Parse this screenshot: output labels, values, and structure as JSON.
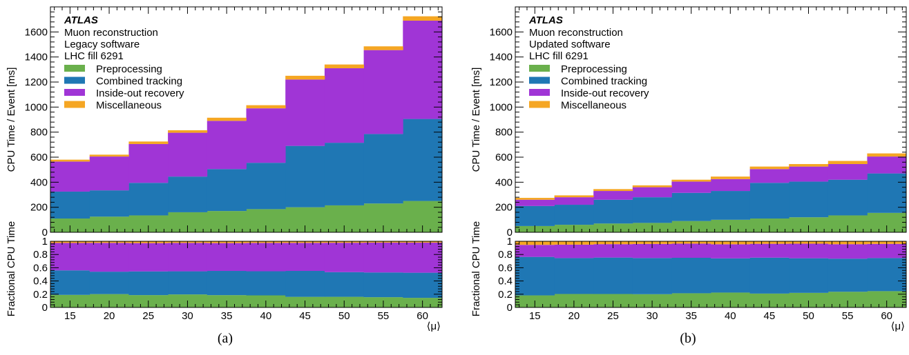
{
  "figure": {
    "colors": {
      "Preprocessing": "#6ab04c",
      "Combined tracking": "#1f77b4",
      "Inside-out recovery": "#a035d6",
      "Miscellaneous": "#f5a623"
    }
  },
  "chart_data": [
    {
      "type": "area",
      "panel_caption": "(a)",
      "experiment": "ATLAS",
      "info_lines": [
        "Muon reconstruction",
        "Legacy software",
        "LHC fill 6291"
      ],
      "xlabel": "⟨μ⟩",
      "ylabel": "CPU Time / Event [ms]",
      "ratio_ylabel": "Fractional CPU Time",
      "xlim": [
        12.5,
        62.5
      ],
      "ylim": [
        0,
        1800
      ],
      "ratio_ylim": [
        0,
        1
      ],
      "x_ticks": [
        15,
        20,
        25,
        30,
        35,
        40,
        45,
        50,
        55,
        60
      ],
      "y_ticks": [
        0,
        200,
        400,
        600,
        800,
        1000,
        1200,
        1400,
        1600
      ],
      "ratio_y_ticks": [
        "0",
        "0.2",
        "0.4",
        "0.6",
        "0.8",
        "1"
      ],
      "legend_position": "top-left",
      "bin_edges": [
        12.5,
        17.5,
        22.5,
        27.5,
        32.5,
        37.5,
        42.5,
        47.5,
        52.5,
        57.5,
        62.5
      ],
      "series": [
        {
          "name": "Preprocessing",
          "values": [
            110,
            125,
            135,
            160,
            170,
            185,
            200,
            215,
            230,
            250
          ]
        },
        {
          "name": "Combined tracking",
          "values": [
            215,
            210,
            260,
            285,
            335,
            370,
            490,
            500,
            555,
            655
          ]
        },
        {
          "name": "Inside-out recovery",
          "values": [
            240,
            270,
            310,
            350,
            385,
            435,
            530,
            595,
            670,
            785
          ]
        },
        {
          "name": "Miscellaneous",
          "values": [
            15,
            15,
            20,
            20,
            25,
            25,
            30,
            30,
            30,
            35
          ]
        }
      ]
    },
    {
      "type": "area",
      "panel_caption": "(b)",
      "experiment": "ATLAS",
      "info_lines": [
        "Muon reconstruction",
        "Updated software",
        "LHC fill 6291"
      ],
      "xlabel": "⟨μ⟩",
      "ylabel": "CPU Time / Event [ms]",
      "ratio_ylabel": "Fractional CPU Time",
      "xlim": [
        12.5,
        62.5
      ],
      "ylim": [
        0,
        1800
      ],
      "ratio_ylim": [
        0,
        1
      ],
      "x_ticks": [
        15,
        20,
        25,
        30,
        35,
        40,
        45,
        50,
        55,
        60
      ],
      "y_ticks": [
        0,
        200,
        400,
        600,
        800,
        1000,
        1200,
        1400,
        1600
      ],
      "ratio_y_ticks": [
        "0",
        "0.2",
        "0.4",
        "0.6",
        "0.8",
        "1"
      ],
      "legend_position": "top-left",
      "bin_edges": [
        12.5,
        17.5,
        22.5,
        27.5,
        32.5,
        37.5,
        42.5,
        47.5,
        52.5,
        57.5,
        62.5
      ],
      "series": [
        {
          "name": "Preprocessing",
          "values": [
            50,
            60,
            70,
            75,
            90,
            100,
            110,
            120,
            135,
            155
          ]
        },
        {
          "name": "Combined tracking",
          "values": [
            160,
            160,
            190,
            205,
            225,
            230,
            285,
            285,
            285,
            315
          ]
        },
        {
          "name": "Inside-out recovery",
          "values": [
            50,
            60,
            70,
            80,
            90,
            95,
            110,
            120,
            125,
            135
          ]
        },
        {
          "name": "Miscellaneous",
          "values": [
            15,
            15,
            15,
            15,
            15,
            20,
            20,
            20,
            25,
            25
          ]
        }
      ]
    }
  ]
}
